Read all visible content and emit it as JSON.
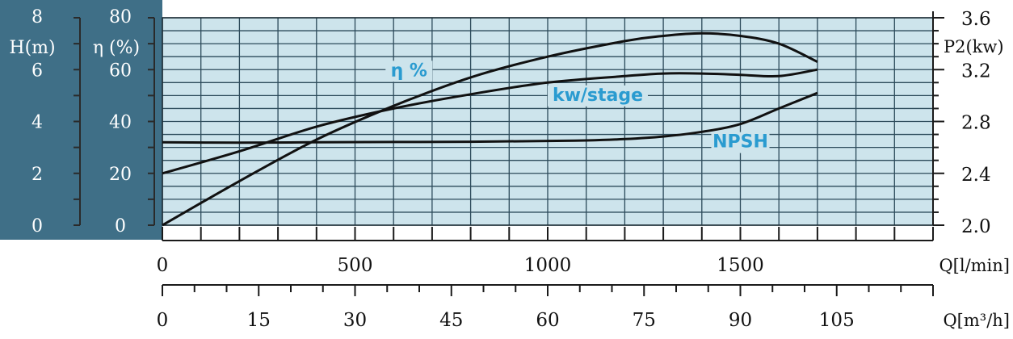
{
  "chart_data": {
    "type": "line",
    "flow_lpm_axis": {
      "label": "Q[l/min]",
      "range": [
        0,
        2000
      ],
      "ticks": [
        0,
        500,
        1000,
        1500
      ]
    },
    "flow_m3h_axis": {
      "label": "Q[m³/h]",
      "range": [
        0,
        120
      ],
      "ticks": [
        0,
        15,
        30,
        45,
        60,
        75,
        90,
        105
      ]
    },
    "head_axis": {
      "label": "H(m)",
      "range": [
        0,
        8
      ],
      "ticks": [
        0,
        2,
        4,
        6,
        8
      ]
    },
    "efficiency_axis": {
      "label": "η (%)",
      "range": [
        0,
        80
      ],
      "ticks": [
        0,
        20,
        40,
        60,
        80
      ]
    },
    "power_axis": {
      "label": "P2(kw)",
      "range": [
        2.0,
        3.6
      ],
      "ticks": [
        "2.0",
        "2.4",
        "2.8",
        "3.2",
        "3.6"
      ]
    },
    "grid": true,
    "series": [
      {
        "name": "η %",
        "axis": "efficiency",
        "color": "#111111",
        "x": [
          0,
          200,
          400,
          600,
          800,
          1000,
          1200,
          1300,
          1400,
          1500,
          1600,
          1700
        ],
        "y": [
          0,
          17,
          33,
          46,
          57,
          65,
          71,
          73,
          74,
          73,
          70,
          63
        ]
      },
      {
        "name": "kw/stage",
        "axis": "power",
        "color": "#111111",
        "x": [
          0,
          200,
          400,
          600,
          800,
          1000,
          1200,
          1300,
          1400,
          1500,
          1600,
          1700
        ],
        "y": [
          2.4,
          2.57,
          2.76,
          2.9,
          3.01,
          3.1,
          3.15,
          3.17,
          3.17,
          3.16,
          3.15,
          3.2
        ]
      },
      {
        "name": "NPSH",
        "axis": "head",
        "color": "#111111",
        "x": [
          0,
          200,
          400,
          600,
          800,
          1000,
          1100,
          1200,
          1300,
          1400,
          1500,
          1600,
          1700
        ],
        "y": [
          3.2,
          3.18,
          3.2,
          3.21,
          3.22,
          3.25,
          3.27,
          3.32,
          3.42,
          3.6,
          3.9,
          4.5,
          5.1
        ]
      }
    ]
  }
}
